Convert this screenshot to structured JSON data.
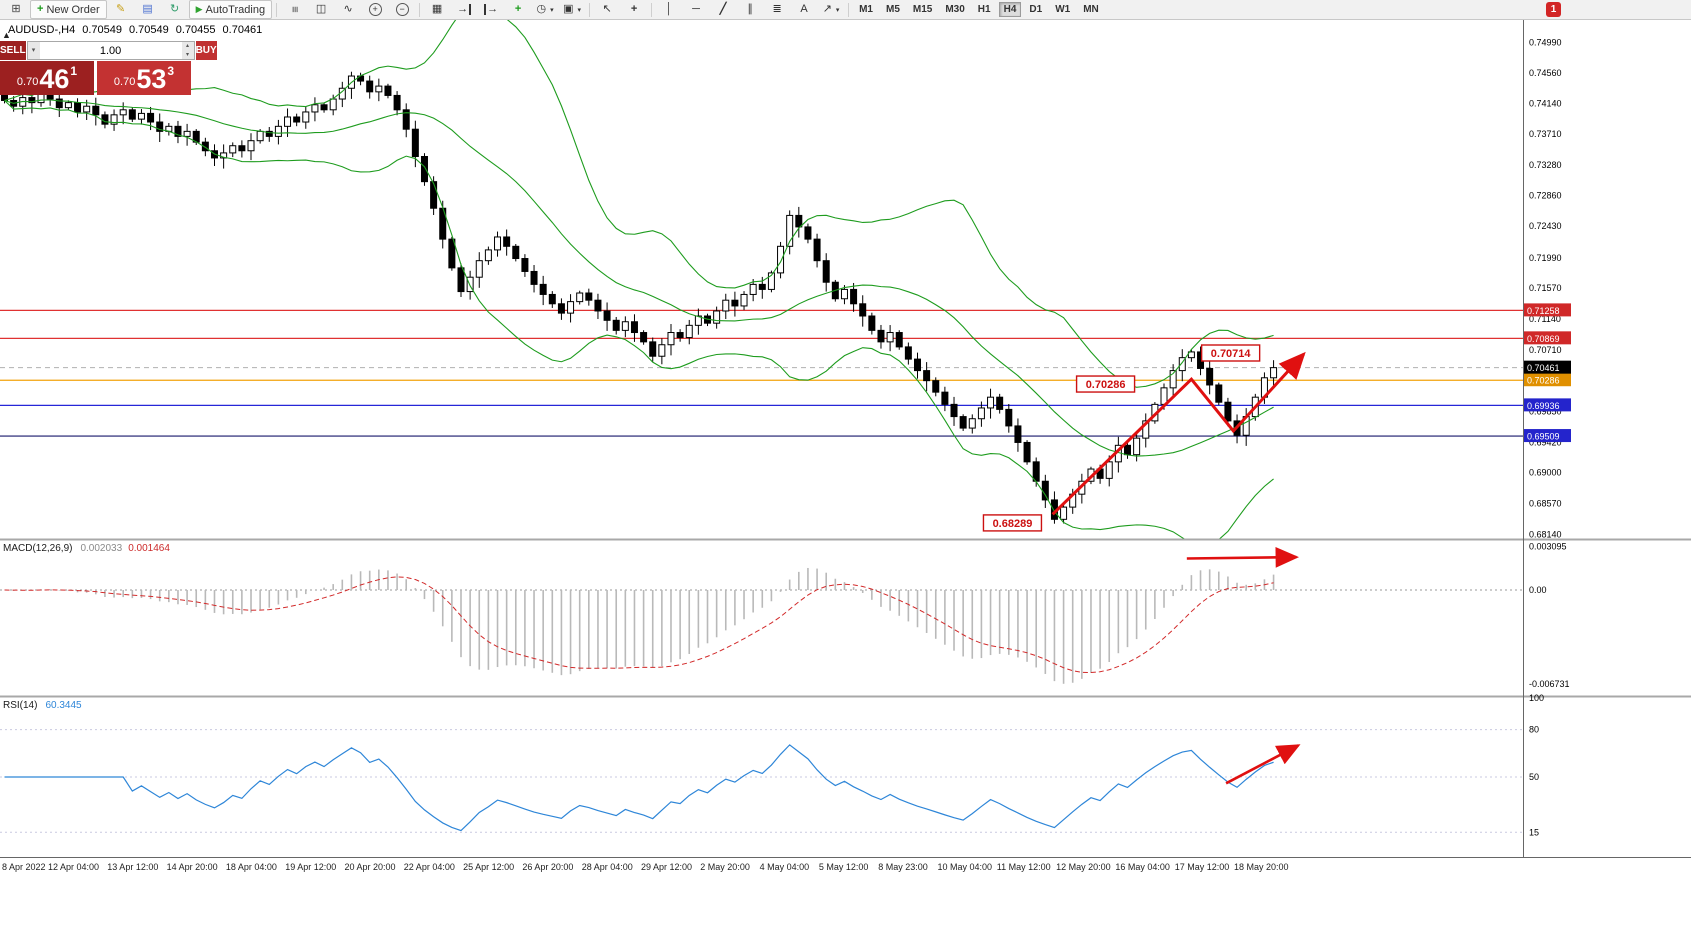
{
  "header": {
    "symbol": "AUDUSD-,H4",
    "open": "0.70549",
    "high": "0.70549",
    "low": "0.70455",
    "close": "0.70461"
  },
  "trade": {
    "sell_label": "SELL",
    "buy_label": "BUY",
    "volume": "1.00",
    "sell": {
      "prefix": "0.70",
      "big": "46",
      "sup": "1"
    },
    "buy": {
      "prefix": "0.70",
      "big": "53",
      "sup": "3"
    }
  },
  "indicators": {
    "macd": {
      "name": "MACD(12,26,9)",
      "value_main": "0.002033",
      "value_signal": "0.001464"
    },
    "rsi": {
      "name": "RSI(14)",
      "value": "60.3445"
    }
  },
  "toolbar": {
    "badge": "1",
    "buttons": [
      {
        "name": "new-chart-button",
        "glyph": "chart-plus"
      },
      {
        "name": "new-order-button",
        "glyph": "order-plus",
        "label": "New Order"
      },
      {
        "name": "metaeditor-button",
        "glyph": "pencil"
      },
      {
        "name": "data-window-button",
        "glyph": "window"
      },
      {
        "name": "refresh-button",
        "glyph": "refresh"
      },
      {
        "name": "autotrading-button",
        "glyph": "play",
        "label": "AutoTrading"
      },
      {
        "sep": true
      },
      {
        "name": "bar-chart-button",
        "glyph": "bars"
      },
      {
        "name": "candlestick-button",
        "glyph": "candles"
      },
      {
        "name": "line-chart-button",
        "glyph": "wave"
      },
      {
        "name": "zoom-in-button",
        "glyph": "zoom-in"
      },
      {
        "name": "zoom-out-button",
        "glyph": "zoom-out"
      },
      {
        "sep": true
      },
      {
        "name": "tile-windows-button",
        "glyph": "grid"
      },
      {
        "name": "auto-scroll-button",
        "glyph": "scroll-right"
      },
      {
        "name": "chart-shift-button",
        "glyph": "shift-left"
      },
      {
        "name": "indicators-button",
        "glyph": "ind-plus"
      },
      {
        "name": "periods-button",
        "glyph": "clock",
        "caret": true
      },
      {
        "name": "templates-button",
        "glyph": "template",
        "caret": true
      },
      {
        "sep": true
      },
      {
        "name": "cursor-button",
        "glyph": "cursor"
      },
      {
        "name": "crosshair-button",
        "glyph": "cross"
      },
      {
        "sep": true
      },
      {
        "name": "vertical-line-button",
        "glyph": "vline"
      },
      {
        "name": "horizontal-line-button",
        "glyph": "hline"
      },
      {
        "name": "trendline-button",
        "glyph": "tline"
      },
      {
        "name": "channel-button",
        "glyph": "channel"
      },
      {
        "name": "fibonacci-button",
        "glyph": "fibo"
      },
      {
        "name": "text-button",
        "glyph": "textA"
      },
      {
        "name": "arrows-button",
        "glyph": "arrow-ne",
        "caret": true
      },
      {
        "sep": true
      }
    ],
    "timeframes": [
      {
        "label": "M1"
      },
      {
        "label": "M5"
      },
      {
        "label": "M15"
      },
      {
        "label": "M30"
      },
      {
        "label": "H1"
      },
      {
        "label": "H4",
        "active": true
      },
      {
        "label": "D1"
      },
      {
        "label": "W1"
      },
      {
        "label": "MN"
      }
    ]
  },
  "chart_data": {
    "type": "candlestick",
    "symbol": "AUDUSD",
    "timeframe": "H4",
    "colors": {
      "bull": "#ffffff",
      "bear": "#000000",
      "outline": "#000000",
      "bands": "#1e9c1e",
      "macd_hist": "#b9b9b9",
      "macd_signal": "#d22a2a",
      "rsi_line": "#2e86d8",
      "arrow": "#e01010",
      "annotation": "#cc1111"
    },
    "main": {
      "first_open": 0.7425,
      "closes": [
        0.7418,
        0.741,
        0.7422,
        0.7415,
        0.7428,
        0.742,
        0.7408,
        0.7415,
        0.7402,
        0.741,
        0.7398,
        0.7385,
        0.7398,
        0.7405,
        0.7392,
        0.74,
        0.7388,
        0.7375,
        0.7382,
        0.7368,
        0.7375,
        0.736,
        0.7348,
        0.7338,
        0.7345,
        0.7355,
        0.7348,
        0.7362,
        0.7375,
        0.7368,
        0.7382,
        0.7395,
        0.7388,
        0.7402,
        0.7412,
        0.7405,
        0.742,
        0.7435,
        0.7452,
        0.7445,
        0.743,
        0.7438,
        0.7425,
        0.7405,
        0.7378,
        0.734,
        0.7305,
        0.7268,
        0.7225,
        0.7185,
        0.7152,
        0.7172,
        0.7195,
        0.721,
        0.7228,
        0.7215,
        0.7198,
        0.718,
        0.7162,
        0.7148,
        0.7135,
        0.7122,
        0.7138,
        0.715,
        0.714,
        0.7125,
        0.7112,
        0.7098,
        0.711,
        0.7095,
        0.7082,
        0.7062,
        0.7078,
        0.7095,
        0.7088,
        0.7105,
        0.7118,
        0.7108,
        0.7125,
        0.714,
        0.7132,
        0.7148,
        0.7162,
        0.7155,
        0.7178,
        0.7215,
        0.7258,
        0.7242,
        0.7225,
        0.7195,
        0.7165,
        0.7142,
        0.7155,
        0.7135,
        0.7118,
        0.7098,
        0.7082,
        0.7095,
        0.7075,
        0.7058,
        0.7042,
        0.7028,
        0.7012,
        0.6995,
        0.6978,
        0.6962,
        0.6975,
        0.699,
        0.7005,
        0.6988,
        0.6965,
        0.6942,
        0.6915,
        0.6888,
        0.6862,
        0.6835,
        0.6852,
        0.687,
        0.6888,
        0.6905,
        0.6892,
        0.6915,
        0.6938,
        0.6925,
        0.6948,
        0.6972,
        0.6995,
        0.7018,
        0.7042,
        0.706,
        0.7068,
        0.7045,
        0.7022,
        0.6998,
        0.6972,
        0.6952,
        0.6978,
        0.7005,
        0.7032,
        0.70461
      ],
      "wick_overrides": {
        "38": {
          "high": 0.7458
        },
        "86": {
          "high": 0.7265
        },
        "115": {
          "low": 0.68289
        },
        "130": {
          "high": 0.70714
        }
      },
      "bollinger": {
        "period": 20,
        "deviation": 2
      },
      "levels": [
        {
          "price": 0.71258,
          "color": "#e03232",
          "box": "#d02828"
        },
        {
          "price": 0.70869,
          "color": "#e03232",
          "box": "#d02828"
        },
        {
          "price": 0.70286,
          "color": "#f2a20c",
          "box": "#e09000"
        },
        {
          "price": 0.69936,
          "color": "#2626d8",
          "box": "#2424cc"
        },
        {
          "price": 0.69509,
          "color": "#17176b",
          "box": "#2424cc"
        }
      ],
      "current_price": {
        "value": 0.70461,
        "box": "#000000"
      },
      "y_ticks": [
        "0.74990",
        "0.74560",
        "0.74140",
        "0.73710",
        "0.73280",
        "0.72860",
        "0.72430",
        "0.71990",
        "0.71570",
        "0.71140",
        "0.70710",
        "0.70280",
        "0.69850",
        "0.69420",
        "0.69000",
        "0.68570",
        "0.68140"
      ],
      "callouts": [
        {
          "text": "0.70714",
          "x_index": 134.3,
          "price": 0.70665
        },
        {
          "text": "0.70286",
          "x_index": 120.6,
          "price": 0.70233
        },
        {
          "text": "0.68289",
          "x_index": 110.4,
          "price": 0.683
        }
      ],
      "trend_polyline": [
        [
          114.8,
          0.6842
        ],
        [
          130.0,
          0.703
        ],
        [
          134.6,
          0.6958
        ],
        [
          142.3,
          0.7065
        ]
      ]
    },
    "macd": {
      "params": "12,26,9",
      "y_ticks": [
        "0.003095",
        "0.00",
        "-0.006731"
      ],
      "arrow": [
        [
          129.5,
          0.00225
        ],
        [
          141.5,
          0.00235
        ]
      ]
    },
    "rsi": {
      "period": 14,
      "levels": [
        80,
        50,
        15
      ],
      "y_ticks": [
        "100",
        "80",
        "50",
        "15"
      ],
      "arrow": [
        [
          133.8,
          46
        ],
        [
          141.7,
          70
        ]
      ]
    },
    "x_labels": [
      "8 Apr 2022",
      "12 Apr 04:00",
      "13 Apr 12:00",
      "14 Apr 20:00",
      "18 Apr 04:00",
      "19 Apr 12:00",
      "20 Apr 20:00",
      "22 Apr 04:00",
      "25 Apr 12:00",
      "26 Apr 20:00",
      "28 Apr 04:00",
      "29 Apr 12:00",
      "2 May 20:00",
      "4 May 04:00",
      "5 May 12:00",
      "8 May 23:00",
      "10 May 04:00",
      "11 May 12:00",
      "12 May 20:00",
      "16 May 04:00",
      "17 May 12:00",
      "18 May 20:00"
    ]
  }
}
